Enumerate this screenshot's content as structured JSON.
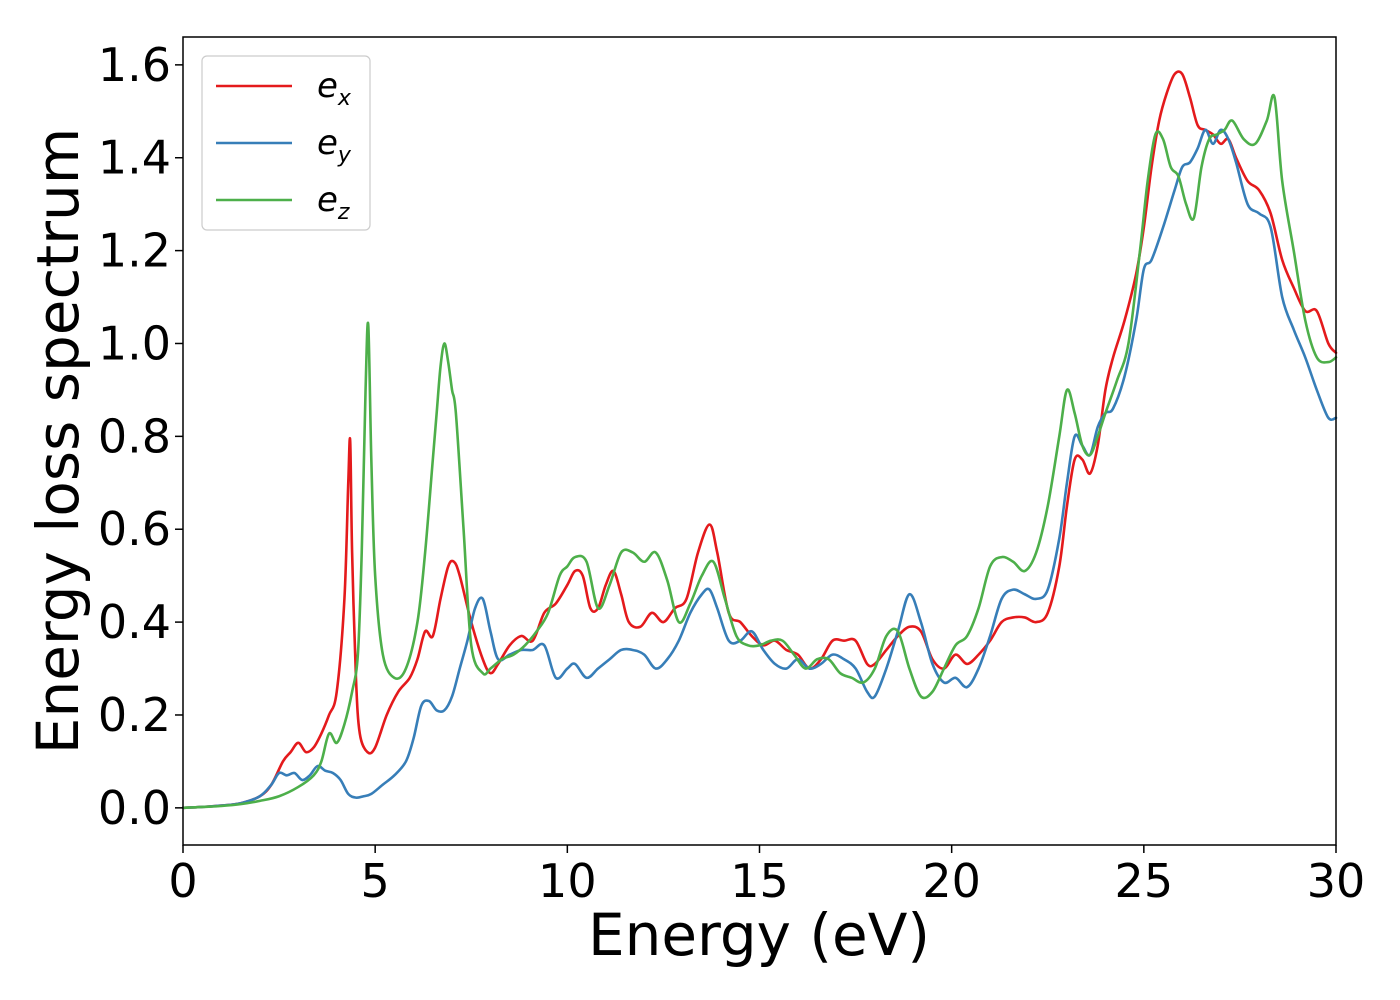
{
  "chart_data": {
    "type": "line",
    "title": "",
    "xlabel": "Energy (eV)",
    "ylabel": "Energy loss spectrum",
    "xlim": [
      0,
      30
    ],
    "ylim": [
      -0.08,
      1.66
    ],
    "xticks": [
      0,
      5,
      10,
      15,
      20,
      25,
      30
    ],
    "yticks": [
      0.0,
      0.2,
      0.4,
      0.6,
      0.8,
      1.0,
      1.2,
      1.4,
      1.6
    ],
    "xtick_labels": [
      "0",
      "5",
      "10",
      "15",
      "20",
      "25",
      "30"
    ],
    "ytick_labels": [
      "0.0",
      "0.2",
      "0.4",
      "0.6",
      "0.8",
      "1.0",
      "1.2",
      "1.4",
      "1.6"
    ],
    "grid": false,
    "legend_position": "top-left",
    "series": [
      {
        "name": "e_x",
        "label_base": "e",
        "label_sub": "x",
        "color": "#e41a1c",
        "x": [
          0,
          0.5,
          1,
          1.5,
          2,
          2.3,
          2.6,
          2.8,
          3,
          3.2,
          3.4,
          3.6,
          3.8,
          4,
          4.2,
          4.3,
          4.35,
          4.4,
          4.5,
          4.6,
          4.8,
          5,
          5.3,
          5.6,
          5.9,
          6.1,
          6.3,
          6.5,
          6.7,
          6.9,
          7.05,
          7.2,
          7.5,
          7.8,
          8,
          8.2,
          8.5,
          8.8,
          9.1,
          9.4,
          9.7,
          10,
          10.2,
          10.4,
          10.6,
          10.8,
          11,
          11.2,
          11.4,
          11.6,
          11.9,
          12.2,
          12.5,
          12.8,
          13.1,
          13.4,
          13.7,
          13.9,
          14.2,
          14.5,
          14.8,
          15.1,
          15.4,
          15.7,
          16,
          16.3,
          16.6,
          16.9,
          17.2,
          17.5,
          17.8,
          18,
          18.3,
          18.6,
          18.9,
          19.2,
          19.5,
          19.8,
          20.1,
          20.4,
          20.7,
          21,
          21.3,
          21.6,
          21.9,
          22.2,
          22.5,
          22.8,
          23,
          23.2,
          23.4,
          23.6,
          23.8,
          24,
          24.2,
          24.5,
          24.8,
          25,
          25.2,
          25.4,
          25.6,
          25.8,
          26,
          26.2,
          26.4,
          26.6,
          26.8,
          27,
          27.2,
          27.4,
          27.7,
          28,
          28.3,
          28.6,
          28.9,
          29.2,
          29.5,
          29.8,
          30
        ],
        "y": [
          0,
          0.002,
          0.005,
          0.01,
          0.025,
          0.05,
          0.1,
          0.12,
          0.14,
          0.12,
          0.13,
          0.16,
          0.2,
          0.25,
          0.45,
          0.7,
          0.79,
          0.55,
          0.28,
          0.16,
          0.12,
          0.13,
          0.2,
          0.25,
          0.28,
          0.32,
          0.38,
          0.37,
          0.45,
          0.52,
          0.53,
          0.5,
          0.4,
          0.32,
          0.29,
          0.31,
          0.35,
          0.37,
          0.36,
          0.42,
          0.44,
          0.48,
          0.51,
          0.5,
          0.43,
          0.43,
          0.48,
          0.51,
          0.46,
          0.4,
          0.39,
          0.42,
          0.4,
          0.43,
          0.45,
          0.55,
          0.61,
          0.55,
          0.42,
          0.4,
          0.37,
          0.35,
          0.36,
          0.34,
          0.33,
          0.3,
          0.32,
          0.36,
          0.36,
          0.36,
          0.31,
          0.31,
          0.34,
          0.37,
          0.39,
          0.38,
          0.32,
          0.3,
          0.33,
          0.31,
          0.33,
          0.36,
          0.4,
          0.41,
          0.41,
          0.4,
          0.42,
          0.52,
          0.65,
          0.75,
          0.75,
          0.72,
          0.78,
          0.9,
          0.97,
          1.05,
          1.15,
          1.25,
          1.38,
          1.48,
          1.54,
          1.58,
          1.58,
          1.53,
          1.47,
          1.46,
          1.45,
          1.43,
          1.44,
          1.4,
          1.35,
          1.33,
          1.28,
          1.18,
          1.12,
          1.07,
          1.07,
          1.0,
          0.98
        ],
        "points": null
      },
      {
        "name": "e_y",
        "label_base": "e",
        "label_sub": "y",
        "color": "#377eb8",
        "x": [
          0,
          0.5,
          1,
          1.5,
          2,
          2.3,
          2.5,
          2.7,
          2.9,
          3.1,
          3.3,
          3.5,
          3.7,
          3.9,
          4.1,
          4.3,
          4.5,
          4.7,
          4.9,
          5.2,
          5.5,
          5.8,
          6,
          6.2,
          6.4,
          6.6,
          6.8,
          7,
          7.2,
          7.4,
          7.6,
          7.8,
          8,
          8.2,
          8.5,
          8.8,
          9.1,
          9.4,
          9.7,
          10,
          10.2,
          10.5,
          10.8,
          11.1,
          11.4,
          11.7,
          12,
          12.3,
          12.6,
          12.9,
          13.2,
          13.5,
          13.7,
          13.9,
          14.2,
          14.5,
          14.8,
          15.1,
          15.4,
          15.7,
          16,
          16.3,
          16.6,
          16.9,
          17.2,
          17.5,
          17.8,
          18,
          18.3,
          18.6,
          18.9,
          19.2,
          19.5,
          19.8,
          20.1,
          20.4,
          20.7,
          21,
          21.3,
          21.6,
          21.9,
          22.2,
          22.5,
          22.8,
          23,
          23.2,
          23.4,
          23.6,
          23.8,
          24,
          24.2,
          24.5,
          24.8,
          25,
          25.2,
          25.5,
          25.8,
          26,
          26.2,
          26.4,
          26.6,
          26.8,
          27,
          27.2,
          27.4,
          27.7,
          28,
          28.3,
          28.6,
          28.9,
          29.2,
          29.5,
          29.8,
          30
        ],
        "y": [
          0,
          0.002,
          0.005,
          0.01,
          0.025,
          0.05,
          0.075,
          0.07,
          0.075,
          0.06,
          0.07,
          0.09,
          0.08,
          0.075,
          0.06,
          0.03,
          0.022,
          0.025,
          0.03,
          0.05,
          0.07,
          0.1,
          0.15,
          0.22,
          0.23,
          0.21,
          0.21,
          0.24,
          0.3,
          0.36,
          0.43,
          0.45,
          0.38,
          0.32,
          0.33,
          0.34,
          0.34,
          0.35,
          0.28,
          0.3,
          0.31,
          0.28,
          0.3,
          0.32,
          0.34,
          0.34,
          0.33,
          0.3,
          0.32,
          0.36,
          0.42,
          0.46,
          0.47,
          0.43,
          0.36,
          0.36,
          0.38,
          0.34,
          0.31,
          0.3,
          0.32,
          0.3,
          0.31,
          0.33,
          0.32,
          0.3,
          0.25,
          0.24,
          0.3,
          0.38,
          0.46,
          0.4,
          0.31,
          0.27,
          0.28,
          0.26,
          0.3,
          0.37,
          0.45,
          0.47,
          0.46,
          0.45,
          0.47,
          0.58,
          0.7,
          0.8,
          0.78,
          0.76,
          0.82,
          0.85,
          0.86,
          0.93,
          1.05,
          1.16,
          1.18,
          1.25,
          1.33,
          1.38,
          1.39,
          1.42,
          1.46,
          1.43,
          1.46,
          1.44,
          1.39,
          1.3,
          1.28,
          1.25,
          1.1,
          1.03,
          0.97,
          0.9,
          0.84,
          0.84
        ],
        "points": null
      },
      {
        "name": "e_z",
        "label_base": "e",
        "label_sub": "z",
        "color": "#4daf4a",
        "x": [
          0,
          0.5,
          1,
          1.5,
          2,
          2.5,
          3,
          3.4,
          3.6,
          3.8,
          4,
          4.2,
          4.4,
          4.55,
          4.65,
          4.75,
          4.82,
          4.9,
          5,
          5.2,
          5.5,
          5.8,
          6.1,
          6.3,
          6.5,
          6.6,
          6.7,
          6.8,
          6.9,
          7,
          7.1,
          7.3,
          7.5,
          7.8,
          8,
          8.3,
          8.6,
          8.9,
          9.2,
          9.5,
          9.8,
          10,
          10.2,
          10.5,
          10.8,
          11.1,
          11.4,
          11.7,
          12,
          12.3,
          12.6,
          12.9,
          13.2,
          13.5,
          13.8,
          14.1,
          14.4,
          14.7,
          15,
          15.3,
          15.6,
          15.9,
          16.2,
          16.5,
          16.8,
          17.1,
          17.4,
          17.7,
          18,
          18.3,
          18.6,
          18.9,
          19.2,
          19.5,
          19.8,
          20.1,
          20.4,
          20.7,
          21,
          21.3,
          21.6,
          21.9,
          22.2,
          22.5,
          22.8,
          23,
          23.2,
          23.4,
          23.6,
          23.8,
          24,
          24.3,
          24.6,
          24.9,
          25.1,
          25.3,
          25.5,
          25.7,
          25.9,
          26.1,
          26.3,
          26.5,
          26.7,
          26.9,
          27.1,
          27.3,
          27.6,
          27.9,
          28.2,
          28.4,
          28.6,
          28.9,
          29.2,
          29.5,
          29.8,
          30
        ],
        "y": [
          0,
          0.002,
          0.004,
          0.008,
          0.015,
          0.025,
          0.045,
          0.07,
          0.1,
          0.16,
          0.14,
          0.18,
          0.25,
          0.33,
          0.55,
          0.9,
          1.04,
          0.75,
          0.5,
          0.33,
          0.28,
          0.3,
          0.4,
          0.55,
          0.75,
          0.85,
          0.95,
          1.0,
          0.96,
          0.9,
          0.85,
          0.6,
          0.35,
          0.29,
          0.3,
          0.32,
          0.33,
          0.35,
          0.38,
          0.42,
          0.5,
          0.52,
          0.54,
          0.53,
          0.43,
          0.48,
          0.55,
          0.55,
          0.53,
          0.55,
          0.49,
          0.4,
          0.44,
          0.5,
          0.53,
          0.45,
          0.37,
          0.35,
          0.35,
          0.36,
          0.36,
          0.33,
          0.3,
          0.32,
          0.32,
          0.29,
          0.28,
          0.27,
          0.3,
          0.37,
          0.38,
          0.3,
          0.24,
          0.25,
          0.3,
          0.35,
          0.37,
          0.43,
          0.52,
          0.54,
          0.53,
          0.51,
          0.55,
          0.65,
          0.8,
          0.9,
          0.85,
          0.78,
          0.76,
          0.8,
          0.85,
          0.92,
          1.0,
          1.2,
          1.35,
          1.45,
          1.44,
          1.38,
          1.36,
          1.3,
          1.27,
          1.38,
          1.44,
          1.45,
          1.46,
          1.48,
          1.44,
          1.43,
          1.48,
          1.53,
          1.35,
          1.2,
          1.05,
          0.97,
          0.96,
          0.97
        ],
        "points": null
      }
    ]
  }
}
